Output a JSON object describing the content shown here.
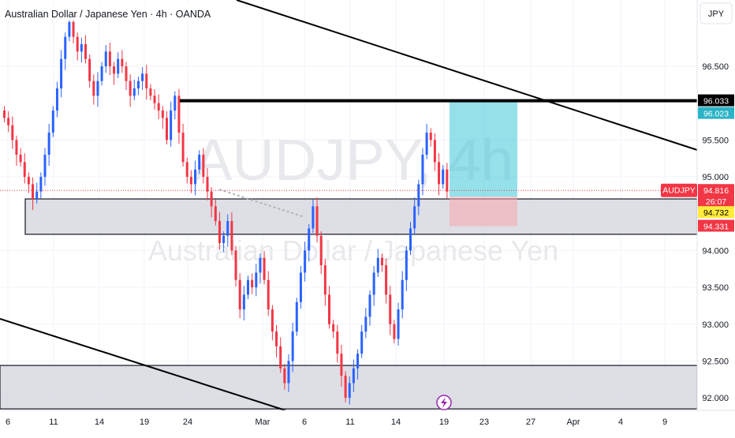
{
  "header": {
    "title": "Australian Dollar / Japanese Yen · 4h · OANDA"
  },
  "watermark": {
    "symbol": "AUDJPY, 4h",
    "name": "Australian Dollar / Japanese Yen"
  },
  "price_axis": {
    "currency": "JPY",
    "ticks": [
      "96.500",
      "95.500",
      "95.000",
      "94.000",
      "93.500",
      "93.000",
      "92.500",
      "92.000"
    ],
    "labels": [
      {
        "id": "resistance",
        "text": "96.033",
        "bg": "#000000",
        "fg": "#ffffff"
      },
      {
        "id": "target",
        "text": "96.023",
        "bg": "#2bb3c7",
        "fg": "#ffffff"
      },
      {
        "id": "last-price",
        "text": "94.816",
        "bg": "#f23645",
        "fg": "#ffffff"
      },
      {
        "id": "countdown",
        "text": "26:07",
        "bg": "#f23645",
        "fg": "#ffffff"
      },
      {
        "id": "entry",
        "text": "94.732",
        "bg": "#ffeb3b",
        "fg": "#000000"
      },
      {
        "id": "stop",
        "text": "94.331",
        "bg": "#f23645",
        "fg": "#ffffff"
      }
    ],
    "symbol_tag": "AUDJPY"
  },
  "time_axis": {
    "ticks": [
      "6",
      "11",
      "14",
      "19",
      "24",
      "Mar",
      "6",
      "11",
      "14",
      "19",
      "23",
      "27",
      "Apr",
      "4",
      "9"
    ]
  },
  "chart_data": {
    "type": "candlestick",
    "instrument": "AUDJPY",
    "timeframe": "4h",
    "ylim": [
      91.83,
      97.4
    ],
    "colors": {
      "up": "#2962ff",
      "down": "#f23645"
    },
    "last_price": 94.816,
    "resistance_level": 96.033,
    "position": {
      "side": "long",
      "entry": 94.732,
      "target": 96.023,
      "stop": 94.331
    },
    "zones": [
      {
        "name": "demand-zone-upper",
        "from": 94.22,
        "to": 94.7
      },
      {
        "name": "demand-zone-lower",
        "from": 91.85,
        "to": 92.44
      }
    ],
    "candle_closes": [
      95.8,
      95.7,
      95.5,
      95.3,
      95.2,
      95.0,
      94.9,
      94.7,
      94.8,
      95.0,
      95.3,
      95.6,
      95.9,
      96.2,
      96.6,
      96.9,
      97.1,
      96.9,
      96.7,
      96.8,
      96.6,
      96.3,
      96.1,
      96.3,
      96.5,
      96.7,
      96.5,
      96.4,
      96.6,
      96.5,
      96.3,
      96.1,
      96.2,
      96.3,
      96.4,
      96.2,
      96.1,
      96.0,
      95.9,
      95.8,
      95.5,
      95.9,
      96.1,
      95.6,
      95.2,
      95.0,
      94.9,
      95.1,
      95.3,
      95.0,
      94.8,
      94.6,
      94.4,
      94.1,
      94.2,
      94.4,
      94.0,
      93.6,
      93.2,
      93.4,
      93.6,
      93.5,
      93.7,
      93.9,
      93.6,
      93.2,
      92.9,
      92.7,
      92.4,
      92.2,
      92.5,
      92.9,
      93.3,
      93.7,
      94.0,
      94.3,
      94.6,
      94.2,
      93.8,
      93.4,
      93.0,
      92.9,
      92.6,
      92.3,
      92.0,
      92.2,
      92.4,
      92.6,
      92.9,
      93.1,
      93.4,
      93.7,
      93.9,
      93.8,
      93.4,
      93.0,
      92.8,
      93.2,
      93.6,
      94.0,
      94.3,
      94.6,
      94.9,
      95.3,
      95.6,
      95.5,
      95.2,
      94.9,
      95.1,
      94.8
    ]
  }
}
